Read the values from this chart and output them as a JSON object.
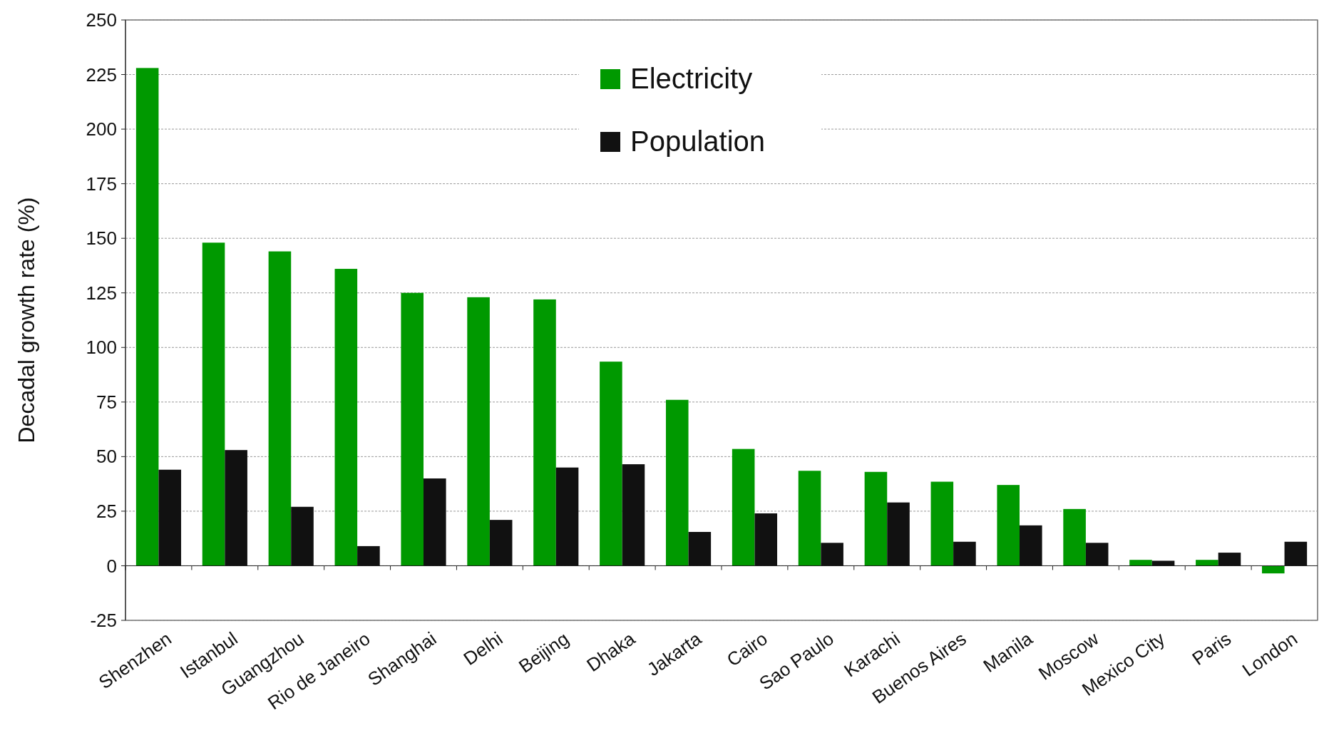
{
  "chart_data": {
    "type": "bar",
    "ylabel": "Decadal growth rate (%)",
    "categories": [
      "Shenzhen",
      "Istanbul",
      "Guangzhou",
      "Rio de Janeiro",
      "Shanghai",
      "Delhi",
      "Beijing",
      "Dhaka",
      "Jakarta",
      "Cairo",
      "Sao Paulo",
      "Karachi",
      "Buenos Aires",
      "Manila",
      "Moscow",
      "Mexico City",
      "Paris",
      "London"
    ],
    "series": [
      {
        "name": "Electricity",
        "color": "#009900",
        "values": [
          228,
          148,
          144,
          136,
          125,
          123,
          122,
          93.5,
          76,
          53.5,
          43.5,
          43,
          38.5,
          37,
          26,
          2.7,
          2.7,
          -3.5
        ]
      },
      {
        "name": "Population",
        "color": "#111111",
        "values": [
          44,
          53,
          27,
          9,
          40,
          21,
          45,
          46.5,
          15.5,
          24,
          10.5,
          29,
          11,
          18.5,
          10.5,
          2.3,
          6,
          11
        ]
      }
    ],
    "ylim": [
      -25,
      250
    ],
    "yticks": [
      -25,
      0,
      25,
      50,
      75,
      100,
      125,
      150,
      175,
      200,
      225,
      250
    ],
    "grid": "y",
    "legend": "top"
  }
}
